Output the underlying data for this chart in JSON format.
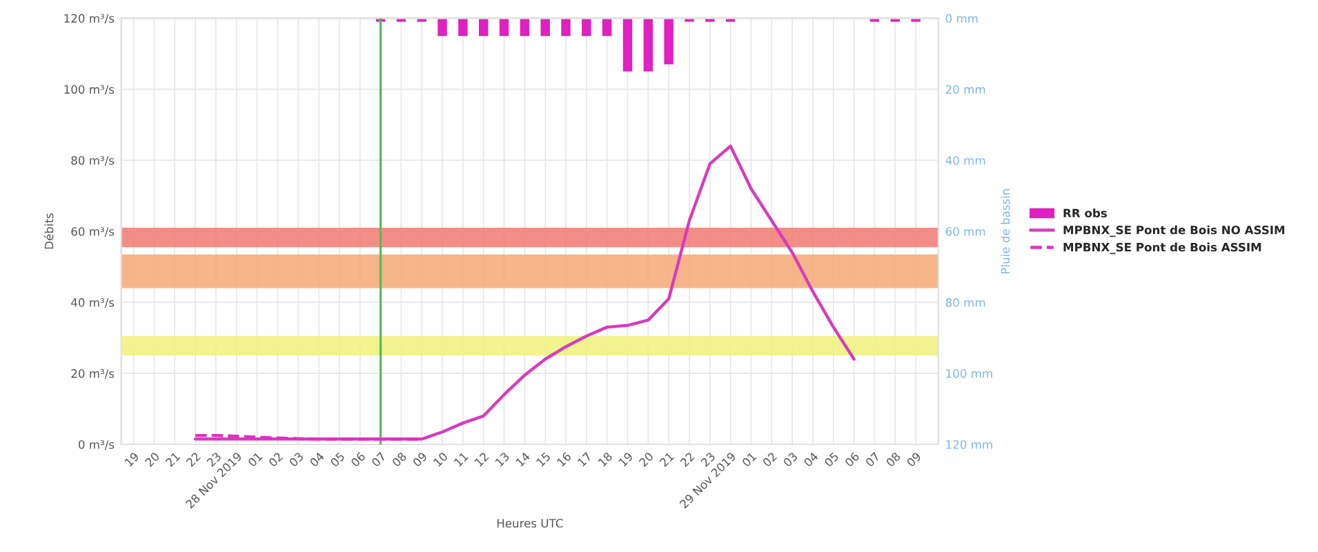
{
  "chart_data": {
    "type": "line",
    "xlabel": "Heures UTC",
    "ylabel": "Débits",
    "y2label": "Pluie de bassin",
    "xlim": [
      "2019-11-27T18:24",
      "2019-11-29T10:06"
    ],
    "ylim": [
      0,
      120
    ],
    "y2lim": [
      120,
      0
    ],
    "xticks": [
      {
        "value": "2019-11-27T19:00",
        "label": "19"
      },
      {
        "value": "2019-11-27T20:00",
        "label": "20"
      },
      {
        "value": "2019-11-27T21:00",
        "label": "21"
      },
      {
        "value": "2019-11-27T22:00",
        "label": "22"
      },
      {
        "value": "2019-11-27T23:00",
        "label": "23"
      },
      {
        "value": "2019-11-28T00:00",
        "label": "28 Nov 2019"
      },
      {
        "value": "2019-11-28T01:00",
        "label": "01"
      },
      {
        "value": "2019-11-28T02:00",
        "label": "02"
      },
      {
        "value": "2019-11-28T03:00",
        "label": "03"
      },
      {
        "value": "2019-11-28T04:00",
        "label": "04"
      },
      {
        "value": "2019-11-28T05:00",
        "label": "05"
      },
      {
        "value": "2019-11-28T06:00",
        "label": "06"
      },
      {
        "value": "2019-11-28T07:00",
        "label": "07"
      },
      {
        "value": "2019-11-28T08:00",
        "label": "08"
      },
      {
        "value": "2019-11-28T09:00",
        "label": "09"
      },
      {
        "value": "2019-11-28T10:00",
        "label": "10"
      },
      {
        "value": "2019-11-28T11:00",
        "label": "11"
      },
      {
        "value": "2019-11-28T12:00",
        "label": "12"
      },
      {
        "value": "2019-11-28T13:00",
        "label": "13"
      },
      {
        "value": "2019-11-28T14:00",
        "label": "14"
      },
      {
        "value": "2019-11-28T15:00",
        "label": "15"
      },
      {
        "value": "2019-11-28T16:00",
        "label": "16"
      },
      {
        "value": "2019-11-28T17:00",
        "label": "17"
      },
      {
        "value": "2019-11-28T18:00",
        "label": "18"
      },
      {
        "value": "2019-11-28T19:00",
        "label": "19"
      },
      {
        "value": "2019-11-28T20:00",
        "label": "20"
      },
      {
        "value": "2019-11-28T21:00",
        "label": "21"
      },
      {
        "value": "2019-11-28T22:00",
        "label": "22"
      },
      {
        "value": "2019-11-28T23:00",
        "label": "23"
      },
      {
        "value": "2019-11-29T00:00",
        "label": "29 Nov 2019"
      },
      {
        "value": "2019-11-29T01:00",
        "label": "01"
      },
      {
        "value": "2019-11-29T02:00",
        "label": "02"
      },
      {
        "value": "2019-11-29T03:00",
        "label": "03"
      },
      {
        "value": "2019-11-29T04:00",
        "label": "04"
      },
      {
        "value": "2019-11-29T05:00",
        "label": "05"
      },
      {
        "value": "2019-11-29T06:00",
        "label": "06"
      },
      {
        "value": "2019-11-29T07:00",
        "label": "07"
      },
      {
        "value": "2019-11-29T08:00",
        "label": "08"
      },
      {
        "value": "2019-11-29T09:00",
        "label": "09"
      }
    ],
    "yticks": [
      {
        "value": 0,
        "label": "0 m³/s"
      },
      {
        "value": 20,
        "label": "20 m³/s"
      },
      {
        "value": 40,
        "label": "40 m³/s"
      },
      {
        "value": 60,
        "label": "60 m³/s"
      },
      {
        "value": 80,
        "label": "80 m³/s"
      },
      {
        "value": 100,
        "label": "100 m³/s"
      },
      {
        "value": 120,
        "label": "120 m³/s"
      }
    ],
    "y2ticks": [
      {
        "value": 0,
        "label": "0 mm"
      },
      {
        "value": 20,
        "label": "20 mm"
      },
      {
        "value": 40,
        "label": "40 mm"
      },
      {
        "value": 60,
        "label": "60 mm"
      },
      {
        "value": 80,
        "label": "80 mm"
      },
      {
        "value": 100,
        "label": "100 mm"
      },
      {
        "value": 120,
        "label": "120 mm"
      }
    ],
    "grid": true,
    "legend": "right",
    "bands": [
      {
        "axis": "y",
        "from": 55.5,
        "to": 61,
        "color": "#f07a72"
      },
      {
        "axis": "y",
        "from": 44,
        "to": 53.5,
        "color": "#f5a874"
      },
      {
        "axis": "y",
        "from": 25,
        "to": 30.5,
        "color": "#eef27a"
      }
    ],
    "ref_lines": [
      {
        "axis": "x",
        "value": "2019-11-28T07:00",
        "color": "#5cb85c"
      }
    ],
    "series": [
      {
        "name": "RR obs",
        "type": "bar",
        "axis": "y2",
        "color": "#e020c0",
        "x": [
          "2019-11-28T07:00",
          "2019-11-28T08:00",
          "2019-11-28T09:00",
          "2019-11-28T10:00",
          "2019-11-28T11:00",
          "2019-11-28T12:00",
          "2019-11-28T13:00",
          "2019-11-28T14:00",
          "2019-11-28T15:00",
          "2019-11-28T16:00",
          "2019-11-28T17:00",
          "2019-11-28T18:00",
          "2019-11-28T19:00",
          "2019-11-28T20:00",
          "2019-11-28T21:00",
          "2019-11-28T22:00",
          "2019-11-28T23:00",
          "2019-11-29T00:00",
          "2019-11-29T07:00",
          "2019-11-29T08:00",
          "2019-11-29T09:00"
        ],
        "values": [
          1,
          1,
          1,
          5,
          5,
          5,
          5,
          5,
          5,
          5,
          5,
          5,
          15,
          15,
          13,
          1,
          1,
          1,
          1,
          1,
          1
        ]
      },
      {
        "name": "MPBNX_SE Pont de Bois NO ASSIM",
        "line_style": "solid",
        "color": "#d63cbc",
        "x": [
          "2019-11-27T22:00",
          "2019-11-27T23:00",
          "2019-11-28T00:00",
          "2019-11-28T01:00",
          "2019-11-28T02:00",
          "2019-11-28T03:00",
          "2019-11-28T04:00",
          "2019-11-28T05:00",
          "2019-11-28T06:00",
          "2019-11-28T07:00",
          "2019-11-28T08:00",
          "2019-11-28T09:00",
          "2019-11-28T10:00",
          "2019-11-28T11:00",
          "2019-11-28T12:00",
          "2019-11-28T13:00",
          "2019-11-28T14:00",
          "2019-11-28T15:00",
          "2019-11-28T16:00",
          "2019-11-28T17:00",
          "2019-11-28T18:00",
          "2019-11-28T19:00",
          "2019-11-28T20:00",
          "2019-11-28T21:00",
          "2019-11-28T22:00",
          "2019-11-28T23:00",
          "2019-11-29T00:00",
          "2019-11-29T01:00",
          "2019-11-29T02:00",
          "2019-11-29T03:00",
          "2019-11-29T04:00",
          "2019-11-29T05:00",
          "2019-11-29T06:00"
        ],
        "values": [
          1.5,
          1.5,
          1.5,
          1.5,
          1.5,
          1.5,
          1.5,
          1.5,
          1.5,
          1.5,
          1.5,
          1.5,
          3.5,
          6,
          8,
          14,
          19.5,
          24,
          27.5,
          30.5,
          33,
          33.5,
          35,
          41,
          63,
          79,
          84,
          72,
          63,
          54,
          43,
          33,
          24
        ]
      },
      {
        "name": "MPBNX_SE Pont de Bois ASSIM",
        "line_style": "dashed",
        "color": "#e030c0",
        "x": [
          "2019-11-27T22:00",
          "2019-11-27T23:00",
          "2019-11-28T00:00",
          "2019-11-28T01:00",
          "2019-11-28T02:00",
          "2019-11-28T03:00",
          "2019-11-28T04:00",
          "2019-11-28T05:00",
          "2019-11-28T06:00",
          "2019-11-28T07:00",
          "2019-11-28T08:00",
          "2019-11-28T09:00"
        ],
        "values": [
          2.5,
          2.5,
          2.3,
          2,
          1.8,
          1.6,
          1.5,
          1.5,
          1.5,
          1.5,
          1.5,
          1.5
        ]
      }
    ]
  }
}
